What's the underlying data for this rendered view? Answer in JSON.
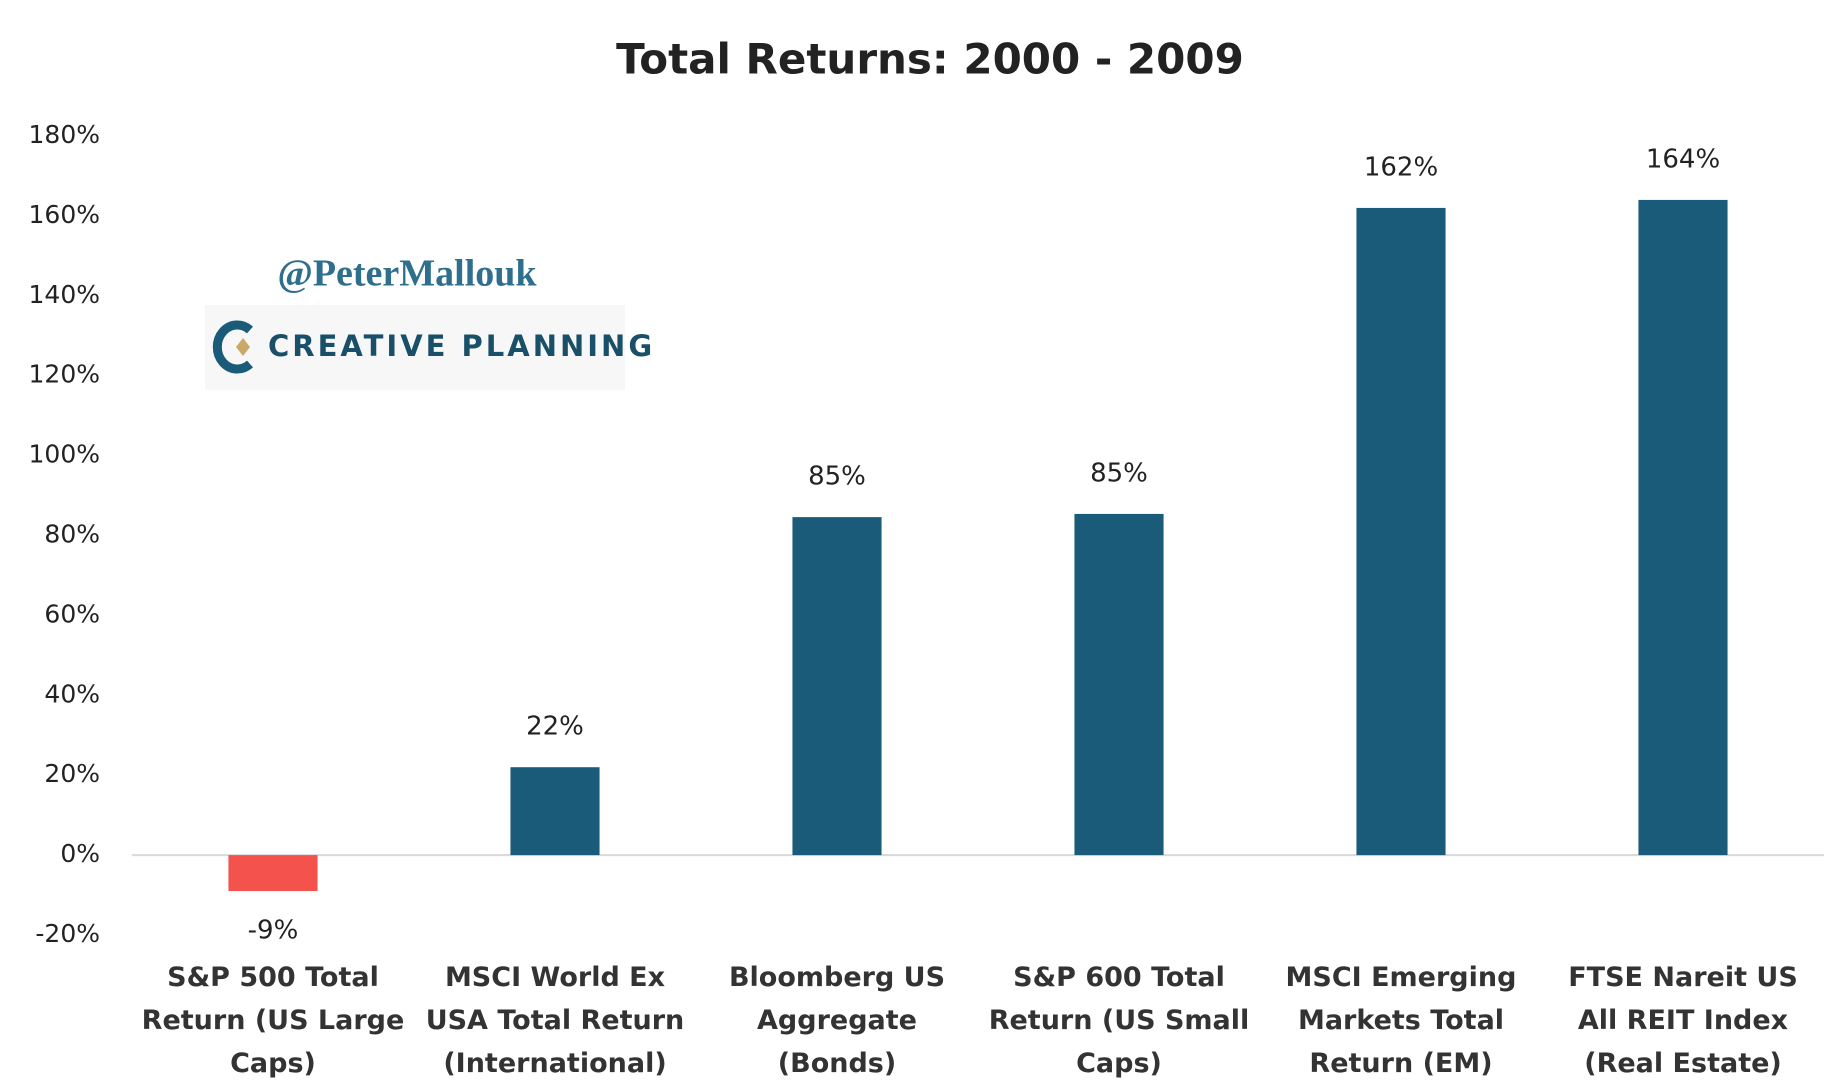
{
  "chart_data": {
    "type": "bar",
    "title": "Total Returns: 2000 - 2009",
    "annotations": [
      "@PeterMallouk",
      "CREATIVE PLANNING"
    ],
    "categories": [
      "S&P 500 Total Return (US Large Caps)",
      "MSCI World Ex USA Total Return (International)",
      "Bloomberg US Aggregate (Bonds)",
      "S&P 600 Total Return (US Small Caps)",
      "MSCI Emerging Markets Total Return (EM)",
      "FTSE Nareit US All REIT Index (Real Estate)"
    ],
    "values": [
      -9,
      22,
      84.6,
      85.4,
      162,
      164
    ],
    "value_labels": [
      "-9%",
      "22%",
      "85%",
      "85%",
      "162%",
      "164%"
    ],
    "color": "#1a5b79",
    "negative_color": "#f4524d",
    "ylim": [
      -20,
      180
    ],
    "yticks": [
      {
        "value": -20,
        "label": "-20%"
      },
      {
        "value": 0,
        "label": "0%"
      },
      {
        "value": 20,
        "label": "20%"
      },
      {
        "value": 40,
        "label": "40%"
      },
      {
        "value": 60,
        "label": "60%"
      },
      {
        "value": 80,
        "label": "80%"
      },
      {
        "value": 100,
        "label": "100%"
      },
      {
        "value": 120,
        "label": "120%"
      },
      {
        "value": 140,
        "label": "140%"
      },
      {
        "value": 160,
        "label": "160%"
      },
      {
        "value": 180,
        "label": "180%"
      }
    ],
    "grid": false
  }
}
